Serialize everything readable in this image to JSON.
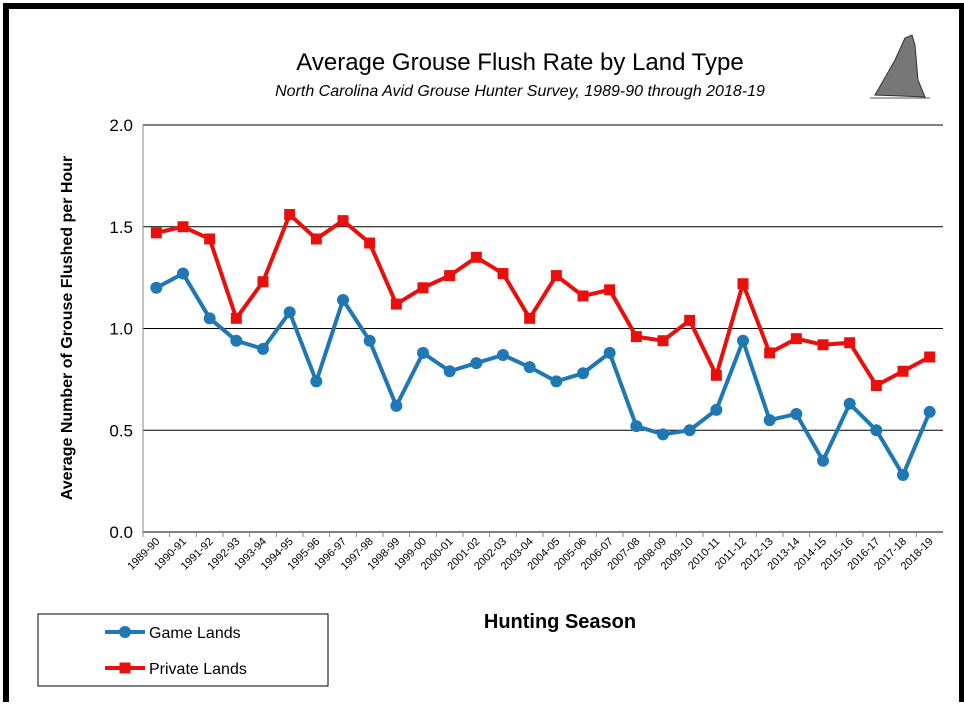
{
  "chart_data": {
    "type": "line",
    "title": "Average Grouse Flush Rate by Land Type",
    "subtitle": "North Carolina Avid Grouse Hunter Survey, 1989-90 through 2018-19",
    "x_label": "Hunting Season",
    "y_label": "Average Number of Grouse Flushed per Hour",
    "categories": [
      "1989-90",
      "1990-91",
      "1991-92",
      "1992-93",
      "1993-94",
      "1994-95",
      "1995-96",
      "1996-97",
      "1997-98",
      "1998-99",
      "1999-00",
      "2000-01",
      "2001-02",
      "2002-03",
      "2003-04",
      "2004-05",
      "2005-06",
      "2006-07",
      "2007-08",
      "2008-09",
      "2009-10",
      "2010-11",
      "2011-12",
      "2012-13",
      "2013-14",
      "2014-15",
      "2015-16",
      "2016-17",
      "2017-18",
      "2018-19"
    ],
    "series": [
      {
        "name": "Game Lands",
        "color": "#1f77b4",
        "marker": "circle",
        "values": [
          1.2,
          1.27,
          1.05,
          0.94,
          0.9,
          1.08,
          0.74,
          1.14,
          0.94,
          0.62,
          0.88,
          0.79,
          0.83,
          0.87,
          0.81,
          0.74,
          0.78,
          0.88,
          0.52,
          0.48,
          0.5,
          0.6,
          0.94,
          0.55,
          0.58,
          0.35,
          0.63,
          0.5,
          0.28,
          0.59
        ]
      },
      {
        "name": "Private Lands",
        "color": "#e8100d",
        "marker": "square",
        "values": [
          1.47,
          1.5,
          1.44,
          1.05,
          1.23,
          1.56,
          1.44,
          1.53,
          1.42,
          1.12,
          1.2,
          1.26,
          1.35,
          1.27,
          1.05,
          1.26,
          1.16,
          1.19,
          0.96,
          0.94,
          1.04,
          0.77,
          1.22,
          0.88,
          0.95,
          0.92,
          0.93,
          0.72,
          0.79,
          0.86
        ]
      }
    ],
    "ylim": [
      0,
      2
    ],
    "yticks": [
      {
        "value": 0,
        "label": "0.0"
      },
      0.5,
      {
        "value": 1,
        "label": "1.0"
      },
      1.5,
      {
        "value": 2,
        "label": "2.0"
      }
    ],
    "grid": true,
    "legend": "bottom-left"
  }
}
